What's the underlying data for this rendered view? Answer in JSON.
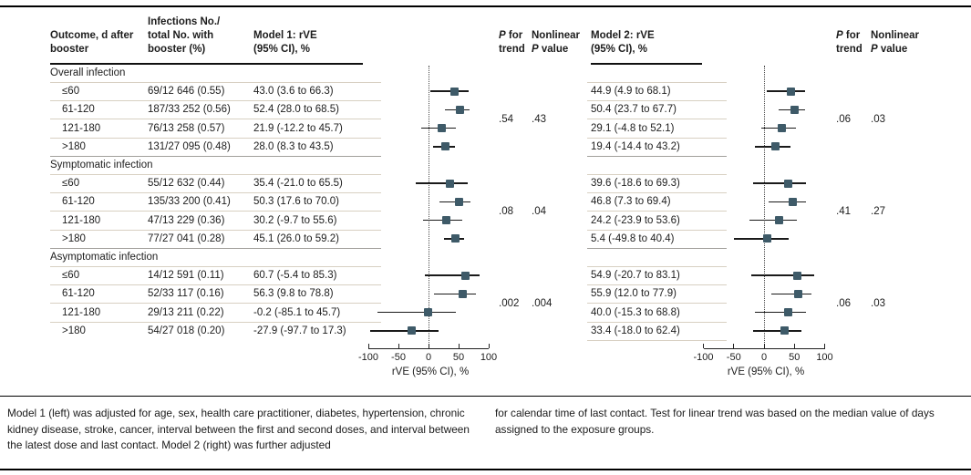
{
  "header": {
    "outcome": "Outcome, d after\nbooster",
    "infections": "Infections No./\ntotal No. with\nbooster (%)",
    "model1": "Model 1: rVE\n(95% CI), %",
    "model2": "Model 2: rVE\n(95% CI), %",
    "p_italic": "P",
    "p_for_rest": " for",
    "p_trend_line2": "trend",
    "nonlinear_line1": "Nonlinear",
    "p_value_rest": " value"
  },
  "axis": {
    "label": "rVE (95% CI), %",
    "min": -100,
    "max": 100,
    "tick_values": [
      -100,
      -50,
      0,
      50,
      100
    ],
    "tick_labels": [
      "-100",
      "-50",
      "0",
      "50",
      "100"
    ]
  },
  "sections": [
    {
      "label": "Overall infection",
      "rows": [
        {
          "outcome": "≤60",
          "infections": "69/12 646 (0.55)",
          "m1": "43.0 (3.6 to 66.3)",
          "m2": "44.9 (4.9 to 68.1)"
        },
        {
          "outcome": "61-120",
          "infections": "187/33 252 (0.56)",
          "m1": "52.4 (28.0 to 68.5)",
          "m2": "50.4 (23.7 to 67.7)"
        },
        {
          "outcome": "121-180",
          "infections": "76/13 258 (0.57)",
          "m1": "21.9 (-12.2 to 45.7)",
          "m2": "29.1 (-4.8 to 52.1)"
        },
        {
          "outcome": ">180",
          "infections": "131/27 095 (0.48)",
          "m1": "28.0 (8.3 to 43.5)",
          "m2": "19.4 (-14.4 to 43.2)"
        }
      ],
      "m1_p_trend": ".54",
      "m1_p_nonlinear": ".43",
      "m2_p_trend": ".06",
      "m2_p_nonlinear": ".03"
    },
    {
      "label": "Symptomatic infection",
      "rows": [
        {
          "outcome": "≤60",
          "infections": "55/12 632 (0.44)",
          "m1": "35.4 (-21.0 to 65.5)",
          "m2": "39.6 (-18.6 to 69.3)"
        },
        {
          "outcome": "61-120",
          "infections": "135/33 200 (0.41)",
          "m1": "50.3 (17.6 to 70.0)",
          "m2": "46.8 (7.3 to 69.4)"
        },
        {
          "outcome": "121-180",
          "infections": "47/13 229 (0.36)",
          "m1": "30.2 (-9.7 to 55.6)",
          "m2": "24.2 (-23.9 to 53.6)"
        },
        {
          "outcome": ">180",
          "infections": "77/27 041 (0.28)",
          "m1": "45.1 (26.0 to 59.2)",
          "m2": "5.4 (-49.8 to 40.4)"
        }
      ],
      "m1_p_trend": ".08",
      "m1_p_nonlinear": ".04",
      "m2_p_trend": ".41",
      "m2_p_nonlinear": ".27"
    },
    {
      "label": "Asymptomatic infection",
      "rows": [
        {
          "outcome": "≤60",
          "infections": "14/12 591 (0.11)",
          "m1": "60.7 (-5.4 to 85.3)",
          "m2": "54.9 (-20.7 to 83.1)"
        },
        {
          "outcome": "61-120",
          "infections": "52/33 117 (0.16)",
          "m1": "56.3 (9.8 to 78.8)",
          "m2": "55.9 (12.0 to 77.9)"
        },
        {
          "outcome": "121-180",
          "infections": "29/13 211 (0.22)",
          "m1": "-0.2 (-85.1 to 45.7)",
          "m2": "40.0 (-15.3 to 68.8)"
        },
        {
          "outcome": ">180",
          "infections": "54/27 018 (0.20)",
          "m1": "-27.9 (-97.7 to 17.3)",
          "m2": "33.4 (-18.0 to 62.4)"
        }
      ],
      "m1_p_trend": ".002",
      "m1_p_nonlinear": ".004",
      "m2_p_trend": ".06",
      "m2_p_nonlinear": ".03"
    }
  ],
  "chart_data": [
    {
      "type": "scatter",
      "subtype": "forest",
      "name": "Model 1: rVE (95% CI), %",
      "xlabel": "rVE (95% CI), %",
      "xlim": [
        -100,
        100
      ],
      "xticks": [
        -100,
        -50,
        0,
        50,
        100
      ],
      "zero_reference": 0,
      "groups": [
        {
          "name": "Overall infection",
          "labels": [
            "≤60",
            "61-120",
            "121-180",
            ">180"
          ],
          "est": [
            43.0,
            52.4,
            21.9,
            28.0
          ],
          "lo": [
            3.6,
            28.0,
            -12.2,
            8.3
          ],
          "hi": [
            66.3,
            68.5,
            45.7,
            43.5
          ]
        },
        {
          "name": "Symptomatic infection",
          "labels": [
            "≤60",
            "61-120",
            "121-180",
            ">180"
          ],
          "est": [
            35.4,
            50.3,
            30.2,
            45.1
          ],
          "lo": [
            -21.0,
            17.6,
            -9.7,
            26.0
          ],
          "hi": [
            65.5,
            70.0,
            55.6,
            59.2
          ]
        },
        {
          "name": "Asymptomatic infection",
          "labels": [
            "≤60",
            "61-120",
            "121-180",
            ">180"
          ],
          "est": [
            60.7,
            56.3,
            -0.2,
            -27.9
          ],
          "lo": [
            -5.4,
            9.8,
            -85.1,
            -97.7
          ],
          "hi": [
            85.3,
            78.8,
            45.7,
            17.3
          ]
        }
      ]
    },
    {
      "type": "scatter",
      "subtype": "forest",
      "name": "Model 2: rVE (95% CI), %",
      "xlabel": "rVE (95% CI), %",
      "xlim": [
        -100,
        100
      ],
      "xticks": [
        -100,
        -50,
        0,
        50,
        100
      ],
      "zero_reference": 0,
      "groups": [
        {
          "name": "Overall infection",
          "labels": [
            "≤60",
            "61-120",
            "121-180",
            ">180"
          ],
          "est": [
            44.9,
            50.4,
            29.1,
            19.4
          ],
          "lo": [
            4.9,
            23.7,
            -4.8,
            -14.4
          ],
          "hi": [
            68.1,
            67.7,
            52.1,
            43.2
          ]
        },
        {
          "name": "Symptomatic infection",
          "labels": [
            "≤60",
            "61-120",
            "121-180",
            ">180"
          ],
          "est": [
            39.6,
            46.8,
            24.2,
            5.4
          ],
          "lo": [
            -18.6,
            7.3,
            -23.9,
            -49.8
          ],
          "hi": [
            69.3,
            69.4,
            53.6,
            40.4
          ]
        },
        {
          "name": "Asymptomatic infection",
          "labels": [
            "≤60",
            "61-120",
            "121-180",
            ">180"
          ],
          "est": [
            54.9,
            55.9,
            40.0,
            33.4
          ],
          "lo": [
            -20.7,
            12.0,
            -15.3,
            -18.0
          ],
          "hi": [
            83.1,
            77.9,
            68.8,
            62.4
          ]
        }
      ]
    }
  ],
  "footnote": {
    "left": "Model 1 (left) was adjusted for age, sex, health care practitioner, diabetes, hypertension, chronic kidney disease, stroke, cancer, interval between the first and second doses, and interval between the latest dose and last contact. Model 2 (right) was further adjusted",
    "right": "for calendar time of last contact. Test for linear trend was based on the median value of days assigned to the exposure groups."
  },
  "colors": {
    "marker": "#3e5a68",
    "separator": "#d8d0c2",
    "section_separator": "#a2a09c",
    "rule": "#000000",
    "text": "#1d1d1d"
  }
}
